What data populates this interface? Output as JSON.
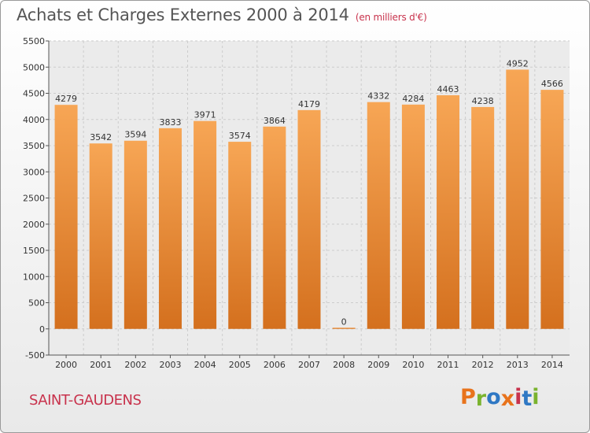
{
  "header": {
    "title": "Achats et Charges Externes 2000 à 2014",
    "subtitle": "(en milliers d'€)"
  },
  "footer": {
    "city": "SAINT-GAUDENS",
    "brand": "Proxiti",
    "brand_colors": [
      "#e8731c",
      "#7ab32e",
      "#2f78c4",
      "#e8731c",
      "#c8324c",
      "#2f78c4",
      "#7ab32e"
    ]
  },
  "chart_data": {
    "type": "bar",
    "title": "Achats et Charges Externes 2000 à 2014",
    "subtitle": "(en milliers d'€)",
    "categories": [
      "2000",
      "2001",
      "2002",
      "2003",
      "2004",
      "2005",
      "2006",
      "2007",
      "2008",
      "2009",
      "2010",
      "2011",
      "2012",
      "2013",
      "2014"
    ],
    "values": [
      4279,
      3542,
      3594,
      3833,
      3971,
      3574,
      3864,
      4179,
      0,
      4332,
      4284,
      4463,
      4238,
      4952,
      4566
    ],
    "ylim": [
      -500,
      5500
    ],
    "yticks": [
      -500,
      0,
      500,
      1000,
      1500,
      2000,
      2500,
      3000,
      3500,
      4000,
      4500,
      5000,
      5500
    ],
    "grid": true,
    "bar_color_top": "#f7a655",
    "bar_color_bottom": "#d4701e"
  }
}
